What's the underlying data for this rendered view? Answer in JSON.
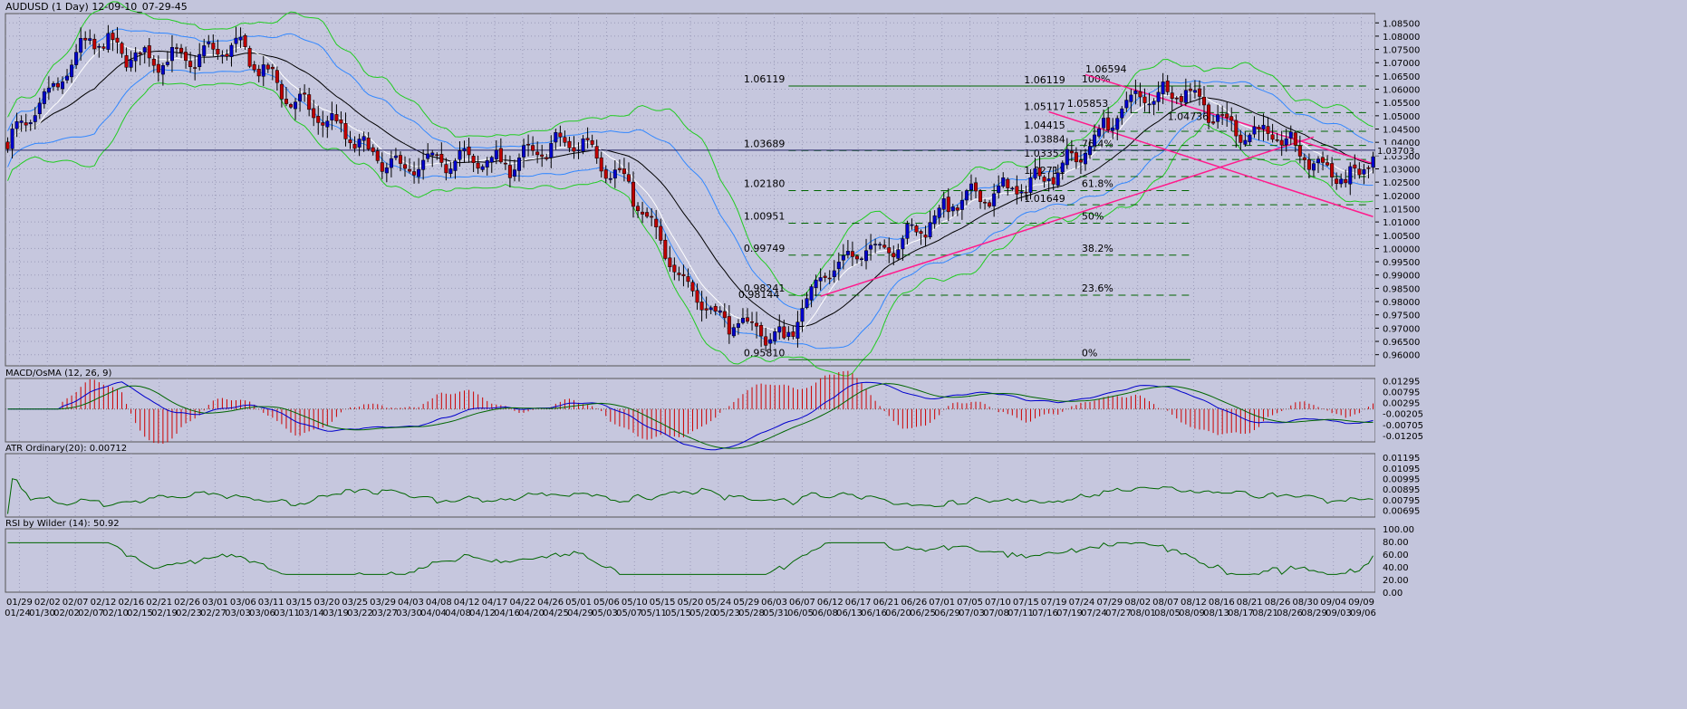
{
  "window": {
    "title": "AUDUSD (1 Day) 12-09-10_07-29-45"
  },
  "colors": {
    "background": "#c3c5dc",
    "plot_background": "#c6c7de",
    "grid": "#9a9ab8",
    "bull_candle": "#0000cc",
    "bear_candle": "#c00000",
    "bollinger_bands": "#22cc22",
    "middle_bollinger": "#000000",
    "moving_average_fast": "#ffffff",
    "envelope_blue": "#3388ff",
    "fibonacci_lines": "#006600",
    "channel_lines": "#ff1a8c",
    "macd_line": "#0000cc",
    "signal_line": "#006600",
    "osma_histogram": "#cc0000",
    "indicator_line": "#006600"
  },
  "chart_data": [
    {
      "type": "candlestick",
      "title": "AUDUSD (1 Day) 12-09-10_07-29-45",
      "symbol": "AUDUSD",
      "timeframe": "1 Day",
      "ylim": [
        0.9558,
        1.0885
      ],
      "grid": true,
      "y_ticks": [
        "1.08500",
        "1.08000",
        "1.07500",
        "1.07000",
        "1.06500",
        "1.06000",
        "1.05500",
        "1.05000",
        "1.04500",
        "1.04000",
        "1.03500",
        "1.03000",
        "1.02500",
        "1.02000",
        "1.01500",
        "1.01000",
        "1.00500",
        "1.00000",
        "0.99500",
        "0.99000",
        "0.98500",
        "0.98000",
        "0.97500",
        "0.97000",
        "0.96500",
        "0.96000"
      ],
      "x_labels_top": [
        "01/29",
        "02/02",
        "02/07",
        "02/12",
        "02/16",
        "02/21",
        "02/26",
        "03/01",
        "03/06",
        "03/11",
        "03/15",
        "03/20",
        "03/25",
        "03/29",
        "04/03",
        "04/08",
        "04/12",
        "04/17",
        "04/22",
        "04/26",
        "05/01",
        "05/06",
        "05/10",
        "05/15",
        "05/20",
        "05/24",
        "05/29",
        "06/03",
        "06/07",
        "06/12",
        "06/17",
        "06/21",
        "06/26",
        "07/01",
        "07/05",
        "07/10",
        "07/15",
        "07/19",
        "07/24",
        "07/29",
        "08/02",
        "08/07",
        "08/12",
        "08/16",
        "08/21",
        "08/26",
        "08/30",
        "09/04",
        "09/09"
      ],
      "x_labels_bottom": [
        "01/24",
        "01/30",
        "02/02",
        "02/07",
        "02/10",
        "02/15",
        "02/19",
        "02/23",
        "02/27",
        "03/03",
        "03/06",
        "03/11",
        "03/14",
        "03/19",
        "03/22",
        "03/27",
        "03/30",
        "04/04",
        "04/08",
        "04/12",
        "04/16",
        "04/20",
        "04/25",
        "04/29",
        "05/03",
        "05/07",
        "05/11",
        "05/15",
        "05/20",
        "05/23",
        "05/28",
        "05/31",
        "06/05",
        "06/08",
        "06/13",
        "06/16",
        "06/20",
        "06/25",
        "06/29",
        "07/03",
        "07/08",
        "07/11",
        "07/16",
        "07/19",
        "07/24",
        "07/27",
        "08/01",
        "08/05",
        "08/09",
        "08/13",
        "08/17",
        "08/21",
        "08/26",
        "08/29",
        "09/03",
        "09/06"
      ],
      "last_price": "1.03703",
      "price_line": 1.03703,
      "fibonacci": [
        {
          "value": 1.06119,
          "label": "1.06119",
          "pct": "100%",
          "style": "solid"
        },
        {
          "value": 1.03689,
          "label": "1.03689",
          "pct": "76.4%",
          "style": "dashed"
        },
        {
          "value": 1.0218,
          "label": "1.02180",
          "pct": "61.8%",
          "style": "dashed"
        },
        {
          "value": 1.00951,
          "label": "1.00951",
          "pct": "50%",
          "style": "dashed"
        },
        {
          "value": 0.99749,
          "label": "0.99749",
          "pct": "38.2%",
          "style": "dashed"
        },
        {
          "value": 0.98241,
          "label": "0.98241",
          "pct": "23.6%",
          "style": "dashed"
        },
        {
          "value": 0.9581,
          "label": "0.95810",
          "pct": "0%",
          "style": "solid"
        }
      ],
      "fibonacci_2": [
        {
          "value": 1.06119,
          "label": "1.06119"
        },
        {
          "value": 1.05117,
          "label": "1.05117"
        },
        {
          "value": 1.04415,
          "label": "1.04415"
        },
        {
          "value": 1.03884,
          "label": "1.03884"
        },
        {
          "value": 1.03353,
          "label": "1.03353"
        },
        {
          "value": 1.02711,
          "label": "1.02711"
        },
        {
          "value": 1.01649,
          "label": "1.01649"
        }
      ],
      "annotations": [
        {
          "text": "1.06594",
          "x_index": 236,
          "y": 1.0664
        },
        {
          "text": "1.04736",
          "x_index": 254,
          "y": 1.0485
        },
        {
          "text": "0.98144",
          "x_index": 160,
          "y": 0.9814
        },
        {
          "text": "1.05853",
          "x_index": 232,
          "y": 1.0533
        }
      ],
      "series": {
        "ohlc": []
      }
    },
    {
      "type": "line",
      "title": "MACD/OsMA (12, 26, 9)",
      "ylim": [
        -0.015,
        0.014
      ],
      "y_ticks": [
        "0.01295",
        "0.00795",
        "0.00295",
        "-0.00205",
        "-0.00705",
        "-0.01205"
      ]
    },
    {
      "type": "line",
      "title": "ATR Ordinary(20): 0.00712",
      "ylim": [
        0.0063,
        0.0123
      ],
      "y_ticks": [
        "0.01195",
        "0.01095",
        "0.00995",
        "0.00895",
        "0.00795",
        "0.00695"
      ]
    },
    {
      "type": "line",
      "title": "RSI by Wilder (14): 50.92",
      "ylim": [
        0,
        100
      ],
      "y_ticks": [
        "100.00",
        "80.00",
        "60.00",
        "40.00",
        "20.00",
        "0.00"
      ]
    }
  ]
}
